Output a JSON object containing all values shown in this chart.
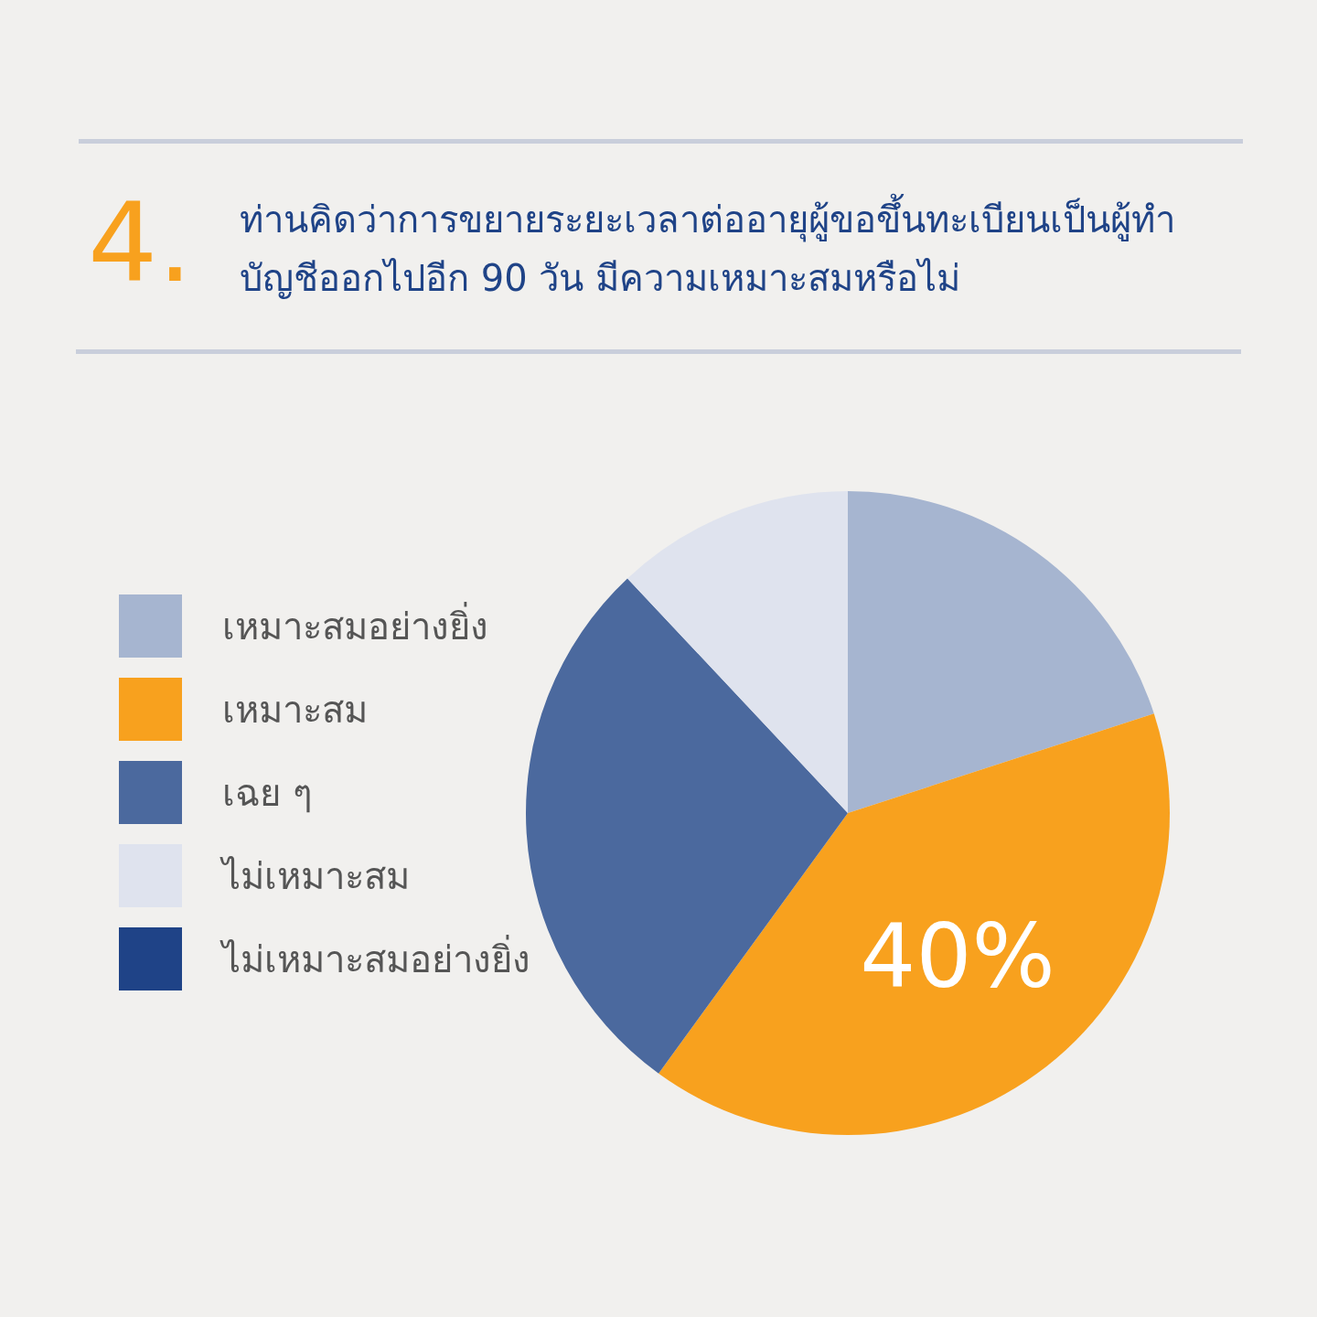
{
  "chart_data": {
    "type": "pie",
    "title": "ท่านคิดว่าการขยายระยะเวลาต่ออายุผู้ขอขึ้นทะเบียนเป็นผู้ทำบัญชีออกไปอีก 90 วัน มีความเหมาะสมหรือไม่",
    "annotations": [
      "4."
    ],
    "categories": [
      "เหมาะสมอย่างยิ่ง",
      "เหมาะสม",
      "เฉย ๆ",
      "ไม่เหมาะสม",
      "ไม่เหมาะสมอย่างยิ่ง"
    ],
    "values": [
      20,
      40,
      28,
      12,
      0
    ],
    "colors": [
      "#a6b5d0",
      "#f8a11e",
      "#4b699e",
      "#dfe3ee",
      "#1f4387"
    ],
    "value_labels": [
      null,
      "40%",
      null,
      null,
      null
    ],
    "legend": "left"
  }
}
